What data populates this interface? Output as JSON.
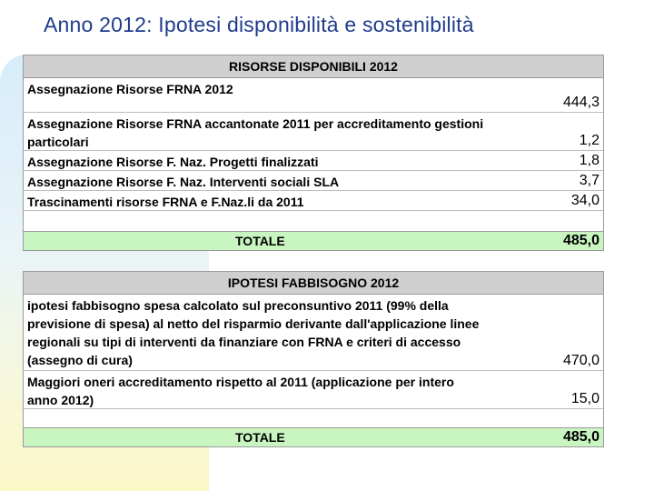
{
  "title": "Anno 2012: Ipotesi disponibilità e sostenibilità",
  "risorse": {
    "header": "RISORSE DISPONIBILI 2012",
    "rows": [
      {
        "label": "Assegnazione  Risorse FRNA 2012",
        "value": "444,3"
      },
      {
        "label": "Assegnazione Risorse FRNA accantonate 2011 per accreditamento gestioni particolari",
        "value": "1,2"
      },
      {
        "label": "Assegnazione Risorse F. Naz. Progetti finalizzati",
        "value": "1,8"
      },
      {
        "label": "Assegnazione Risorse F. Naz. Interventi sociali SLA",
        "value": "3,7"
      },
      {
        "label": "Trascinamenti risorse FRNA e F.Naz.li da 2011",
        "value": "34,0"
      }
    ],
    "total_label": "TOTALE",
    "total_value": "485,0"
  },
  "fabbisogno": {
    "header": "IPOTESI FABBISOGNO 2012",
    "rows": [
      {
        "label": "ipotesi fabbisogno spesa calcolato sul preconsuntivo 2011 (99% della previsione di spesa) al netto del risparmio derivante dall'applicazione linee regionali su tipi di interventi da finanziare con FRNA e criteri di accesso (assegno di cura)",
        "value": "470,0"
      },
      {
        "label": "Maggiori oneri accreditamento rispetto al 2011 (applicazione per intero anno 2012)",
        "value": "15,0"
      }
    ],
    "total_label": "TOTALE",
    "total_value": "485,0"
  }
}
